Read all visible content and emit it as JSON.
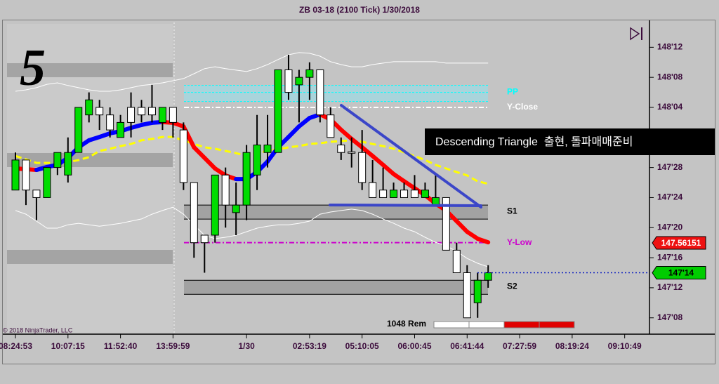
{
  "chart_data": {
    "type": "candlestick",
    "title": "ZB 03-18 (2100 Tick)  1/30/2018",
    "tag": "5",
    "annotation": "Descending Triangle  출현, 돌파매매준비",
    "copyright": "© 2018 NinjaTrader, LLC",
    "remaining_label": "1048 Rem",
    "up_color": "#00dd00",
    "down_color": "#ffffff",
    "categories": [
      "08:24:53",
      null,
      null,
      null,
      null,
      "10:07:15",
      null,
      null,
      null,
      null,
      "11:52:40",
      null,
      null,
      null,
      null,
      "13:59:59",
      null,
      null,
      null,
      null,
      null,
      null,
      "1/30",
      null,
      null,
      null,
      null,
      null,
      "02:53:19",
      null,
      null,
      null,
      null,
      "05:10:05",
      null,
      null,
      null,
      null,
      "06:00:45",
      null,
      null,
      null,
      null,
      "06:41:44",
      null,
      null,
      null,
      null,
      "07:27:59",
      null,
      null,
      null,
      null,
      "08:19:24",
      null,
      null,
      null,
      null,
      "09:10:49",
      null,
      null
    ],
    "open": [
      147.78125,
      147.90625,
      147.78125,
      147.75,
      147.875,
      147.84375,
      147.9375,
      148.09375,
      148.125,
      148.09375,
      148,
      148.125,
      148.125,
      148.125,
      148.0625,
      148.125,
      148.03125,
      147.8125,
      147.59375,
      147.59375,
      147.84375,
      147.6875,
      147.71875,
      147.84375,
      147.9375,
      147.9375,
      148.28125,
      148.21875,
      148.25,
      148.28125,
      148.09375,
      147.96875,
      147.9375,
      147.9375,
      147.8125,
      147.78125,
      147.75,
      147.78125,
      147.78125,
      147.75,
      147.71875,
      147.75,
      147.53125,
      147.4375,
      147.3125,
      147.40625,
      null,
      null,
      null,
      null,
      null,
      null,
      null,
      null,
      null,
      null,
      null,
      null,
      null,
      null,
      null
    ],
    "high": [
      147.9375,
      147.90625,
      147.78125,
      147.875,
      147.9375,
      148,
      148.125,
      148.1875,
      148.15625,
      148.125,
      148.09375,
      148.1875,
      148.15625,
      148.21875,
      148.125,
      148.125,
      148.0625,
      147.8125,
      147.59375,
      147.84375,
      147.875,
      147.8125,
      147.96875,
      148.09375,
      148.09375,
      148.28125,
      148.34375,
      148.28125,
      148.3125,
      148.28125,
      148.125,
      148,
      148,
      148.03125,
      147.90625,
      147.875,
      147.8125,
      147.8125,
      147.84375,
      147.8125,
      147.84375,
      147.75,
      147.5625,
      147.46875,
      147.4375,
      147.46875,
      null,
      null,
      null,
      null,
      null,
      null,
      null,
      null,
      null,
      null,
      null,
      null,
      null,
      null,
      null
    ],
    "low": [
      147.78125,
      147.71875,
      147.65625,
      147.75,
      147.84375,
      147.8125,
      147.9375,
      148.0625,
      148.03125,
      148,
      148,
      148,
      148.0625,
      148.0625,
      148.03125,
      148,
      147.78125,
      147.5,
      147.4375,
      147.5625,
      147.625,
      147.59375,
      147.65625,
      147.78125,
      147.875,
      147.9375,
      148.15625,
      148.0625,
      148.15625,
      148.0625,
      148,
      147.90625,
      147.875,
      147.78125,
      147.75,
      147.75,
      147.75,
      147.75,
      147.75,
      147.75,
      147.71875,
      147.53125,
      147.4375,
      147.25,
      147.25,
      147.375,
      null,
      null,
      null,
      null,
      null,
      null,
      null,
      null,
      null,
      null,
      null,
      null,
      null,
      null,
      null
    ],
    "close": [
      147.90625,
      147.78125,
      147.75,
      147.875,
      147.9375,
      147.9375,
      148.125,
      148.15625,
      148.09375,
      148.03125,
      148.0625,
      148.0625,
      148.09375,
      148.09375,
      148.125,
      148.0625,
      147.8125,
      147.5625,
      147.5625,
      147.84375,
      147.71875,
      147.71875,
      147.9375,
      147.96875,
      147.96875,
      148.28125,
      148.1875,
      148.25,
      148.28125,
      148.09375,
      148,
      147.9375,
      147.9375,
      147.8125,
      147.75,
      147.75,
      147.78125,
      147.75,
      147.75,
      147.78125,
      147.75,
      147.53125,
      147.4375,
      147.25,
      147.40625,
      147.4375,
      null,
      null,
      null,
      null,
      null,
      null,
      null,
      null,
      null,
      null,
      null,
      null,
      null,
      null,
      null
    ],
    "overlays": [
      {
        "up_color": "#0000ff",
        "down_color": "#ff0000",
        "width": 6,
        "values": [
          147.871,
          147.868,
          147.865,
          147.877,
          147.886,
          147.915,
          147.959,
          147.988,
          148.002,
          148.017,
          148.026,
          148.04,
          148.052,
          148.061,
          148.064,
          148.061,
          148.046,
          147.959,
          147.915,
          147.871,
          147.842,
          147.827,
          147.827,
          147.856,
          147.9,
          147.959,
          148.002,
          148.046,
          148.081,
          148.096,
          148.075,
          148.032,
          147.994,
          147.959,
          147.923,
          147.886,
          147.848,
          147.818,
          147.789,
          147.76,
          147.725,
          147.696,
          147.652,
          147.608,
          147.579,
          147.564,
          null,
          null,
          null,
          null,
          null,
          null,
          null,
          null,
          null,
          null,
          null,
          null,
          null,
          null,
          null
        ]
      },
      {
        "color": "#ffff00",
        "dash": true,
        "width": 3,
        "values": [
          147.923,
          147.909,
          147.894,
          147.894,
          147.894,
          147.897,
          147.906,
          147.918,
          147.944,
          147.953,
          147.964,
          147.973,
          147.988,
          147.994,
          148.002,
          148.002,
          147.988,
          147.973,
          147.959,
          147.953,
          147.944,
          147.935,
          147.923,
          147.935,
          147.944,
          147.95,
          147.959,
          147.964,
          147.973,
          147.976,
          147.982,
          147.985,
          147.988,
          147.982,
          147.973,
          147.964,
          147.953,
          147.938,
          147.923,
          147.906,
          147.886,
          147.871,
          147.856,
          147.842,
          147.818,
          147.807,
          null,
          null,
          null,
          null,
          null,
          null,
          null,
          null,
          null,
          null,
          null,
          null,
          null,
          null,
          null
        ]
      },
      {
        "color": "#ffffff",
        "width": 1,
        "values": [
          148.192,
          148.198,
          148.207,
          148.221,
          148.227,
          148.216,
          148.207,
          148.198,
          148.192,
          148.192,
          148.198,
          148.207,
          148.216,
          148.221,
          148.227,
          148.236,
          148.245,
          148.265,
          148.286,
          148.294,
          148.286,
          148.28,
          148.274,
          148.286,
          148.303,
          148.324,
          148.344,
          148.353,
          148.35,
          148.338,
          148.315,
          148.303,
          148.294,
          148.294,
          148.303,
          148.309,
          148.315,
          148.315,
          148.315,
          148.315,
          148.315,
          148.309,
          148.309,
          148.309,
          148.309,
          148.309,
          null,
          null,
          null,
          null,
          null,
          null,
          null,
          null,
          null,
          null,
          null,
          null,
          null,
          null,
          null
        ]
      },
      {
        "color": "#ffffff",
        "width": 1,
        "values": [
          147.696,
          147.681,
          147.652,
          147.623,
          147.623,
          147.637,
          147.643,
          147.637,
          147.631,
          147.637,
          147.643,
          147.652,
          147.661,
          147.681,
          147.696,
          147.71,
          147.681,
          147.637,
          147.593,
          147.579,
          147.585,
          147.593,
          147.608,
          147.623,
          147.631,
          147.637,
          147.637,
          147.643,
          147.652,
          147.681,
          147.69,
          147.696,
          147.702,
          147.696,
          147.681,
          147.661,
          147.643,
          147.623,
          147.608,
          147.585,
          147.564,
          147.55,
          147.526,
          147.497,
          147.477,
          147.462,
          null,
          null,
          null,
          null,
          null,
          null,
          null,
          null,
          null,
          null,
          null,
          null,
          null,
          null,
          null
        ]
      }
    ],
    "levels": [
      {
        "name": "PP",
        "value": 148.1875,
        "color": "#00ffff",
        "style": "band"
      },
      {
        "name": "Y-Close",
        "value": 148.125,
        "color": "#ffffff",
        "style": "dashdot"
      },
      {
        "name": "S1",
        "value": 147.71875,
        "color": "#000000",
        "style": "band"
      },
      {
        "name": "Y-Low",
        "value": 147.5625,
        "color": "#cc00cc",
        "style": "dashdot"
      },
      {
        "name": "S2",
        "value": 147.40625,
        "color": "#000000",
        "style": "band"
      }
    ],
    "price_markers": [
      {
        "value": 147.56151,
        "color": "#ee1111",
        "text_color": "#ffffff"
      },
      {
        "value": 147.4375,
        "label": "147'14",
        "color": "#00cc00",
        "text_color": "#000000"
      }
    ],
    "ylim": [
      147.185,
      148.484
    ],
    "yticks": [
      {
        "value": 148.375,
        "label": "148'12"
      },
      {
        "value": 148.25,
        "label": "148'08"
      },
      {
        "value": 148.125,
        "label": "148'04"
      },
      {
        "value": 147.875,
        "label": "147'28"
      },
      {
        "value": 147.75,
        "label": "147'24"
      },
      {
        "value": 147.625,
        "label": "147'20"
      },
      {
        "value": 147.5,
        "label": "147'16"
      },
      {
        "value": 147.375,
        "label": "147'12"
      },
      {
        "value": 147.25,
        "label": "147'08"
      }
    ]
  }
}
